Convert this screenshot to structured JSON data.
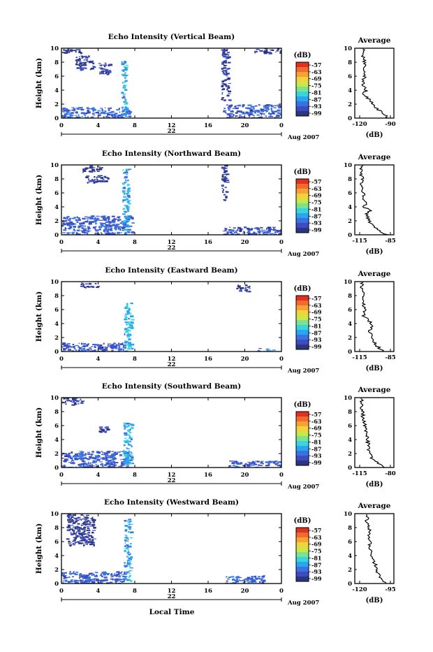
{
  "figure": {
    "bottom_label": "Local Time",
    "x_ticks": [
      "0",
      "4",
      "8",
      "12",
      "16",
      "20",
      "0"
    ],
    "date_day": "22",
    "month_year": "Aug 2007",
    "y_label": "Height (km)",
    "y_ticks": [
      "0",
      "2",
      "4",
      "6",
      "8",
      "10"
    ],
    "colorbar_unit": "(dB)",
    "colorbar_ticks": [
      "-57",
      "-63",
      "-69",
      "-75",
      "-81",
      "-87",
      "-93",
      "-99"
    ],
    "colorbar_colors": [
      "#e0301e",
      "#f26a2e",
      "#f7a234",
      "#f5d23c",
      "#c8e84a",
      "#7fe08e",
      "#38d6dc",
      "#2aa6f0",
      "#3a72e0",
      "#3d4cc0",
      "#2c3680"
    ],
    "average_title": "Average",
    "average_unit": "(dB)"
  },
  "panels": [
    {
      "title": "Echo Intensity (Vertical Beam)",
      "avg_xticks": [
        "-120",
        "-90"
      ]
    },
    {
      "title": "Echo Intensity (Northward Beam)",
      "avg_xticks": [
        "-115",
        "-85"
      ]
    },
    {
      "title": "Echo Intensity (Eastward Beam)",
      "avg_xticks": [
        "-115",
        "-85"
      ]
    },
    {
      "title": "Echo Intensity (Southward Beam)",
      "avg_xticks": [
        "-115",
        "-80"
      ]
    },
    {
      "title": "Echo Intensity (Westward Beam)",
      "avg_xticks": [
        "-120",
        "-95"
      ]
    }
  ],
  "chart_data": {
    "type": "heatmap",
    "x_unit": "local time (hours), 22 Aug 2007",
    "y_unit": "height (km)",
    "xlim": [
      0,
      24
    ],
    "ylim": [
      0,
      10
    ],
    "colorbar_range_db": [
      -99,
      -57
    ],
    "beams": [
      {
        "name": "Vertical Beam",
        "echo_regions": [
          {
            "t": [
              0.0,
              2.3
            ],
            "h": [
              9.4,
              10.0
            ],
            "db": -98
          },
          {
            "t": [
              1.5,
              3.5
            ],
            "h": [
              7.0,
              9.0
            ],
            "db": -97
          },
          {
            "t": [
              4.0,
              5.2
            ],
            "h": [
              6.2,
              8.0
            ],
            "db": -97
          },
          {
            "t": [
              0.0,
              7.5
            ],
            "h": [
              0.0,
              1.6
            ],
            "db": -92
          },
          {
            "t": [
              6.5,
              7.0
            ],
            "h": [
              0.3,
              8.2
            ],
            "db": -86
          },
          {
            "t": [
              17.6,
              24.0
            ],
            "h": [
              0.0,
              2.0
            ],
            "db": -93
          },
          {
            "t": [
              17.4,
              18.2
            ],
            "h": [
              2.5,
              10.0
            ],
            "db": -97
          },
          {
            "t": [
              21.0,
              24.0
            ],
            "h": [
              9.4,
              10.0
            ],
            "db": -98
          }
        ],
        "average_profile": {
          "height": [
            0,
            0.5,
            1,
            1.5,
            2,
            2.5,
            3,
            3.5,
            4,
            5,
            6,
            7,
            8,
            9,
            10
          ],
          "db": [
            -92,
            -96,
            -100,
            -104,
            -107,
            -110,
            -113,
            -116,
            -114,
            -117,
            -115,
            -116,
            -115,
            -117,
            -116
          ]
        }
      },
      {
        "name": "Northward Beam",
        "echo_regions": [
          {
            "t": [
              2.2,
              4.5
            ],
            "h": [
              9.0,
              10.0
            ],
            "db": -97
          },
          {
            "t": [
              2.5,
              5.0
            ],
            "h": [
              7.5,
              8.6
            ],
            "db": -97
          },
          {
            "t": [
              0.0,
              7.8
            ],
            "h": [
              0.0,
              2.8
            ],
            "db": -93
          },
          {
            "t": [
              6.6,
              7.3
            ],
            "h": [
              0.5,
              9.5
            ],
            "db": -86
          },
          {
            "t": [
              17.6,
              24.0
            ],
            "h": [
              0.0,
              1.2
            ],
            "db": -94
          },
          {
            "t": [
              17.4,
              18.0
            ],
            "h": [
              5.0,
              10.0
            ],
            "db": -97
          }
        ],
        "average_profile": {
          "height": [
            0,
            0.5,
            1,
            1.5,
            2,
            3,
            3.5,
            4,
            4.5,
            5,
            6,
            7,
            8,
            9,
            10
          ],
          "db": [
            -88,
            -95,
            -99,
            -103,
            -106,
            -108,
            -104,
            -111,
            -107,
            -112,
            -111,
            -113,
            -112,
            -114,
            -113
          ]
        }
      },
      {
        "name": "Eastward Beam",
        "echo_regions": [
          {
            "t": [
              2.0,
              4.0
            ],
            "h": [
              9.2,
              10.0
            ],
            "db": -98
          },
          {
            "t": [
              0.0,
              7.0
            ],
            "h": [
              0.0,
              1.3
            ],
            "db": -93
          },
          {
            "t": [
              6.8,
              7.6
            ],
            "h": [
              0.4,
              7.0
            ],
            "db": -85
          },
          {
            "t": [
              21.0,
              23.0
            ],
            "h": [
              0.0,
              0.5
            ],
            "db": -90
          },
          {
            "t": [
              19.0,
              20.5
            ],
            "h": [
              8.6,
              9.6
            ],
            "db": -98
          }
        ],
        "average_profile": {
          "height": [
            0,
            0.5,
            1,
            2,
            3,
            3.8,
            4.5,
            5,
            6,
            7,
            8,
            9,
            10
          ],
          "db": [
            -92,
            -96,
            -100,
            -103,
            -106,
            -102,
            -107,
            -111,
            -110,
            -112,
            -111,
            -113,
            -112
          ]
        }
      },
      {
        "name": "Southward Beam",
        "echo_regions": [
          {
            "t": [
              0.0,
              2.3
            ],
            "h": [
              9.0,
              10.0
            ],
            "db": -98
          },
          {
            "t": [
              0.0,
              7.6
            ],
            "h": [
              0.0,
              2.4
            ],
            "db": -93
          },
          {
            "t": [
              6.7,
              7.6
            ],
            "h": [
              0.5,
              6.5
            ],
            "db": -86
          },
          {
            "t": [
              18.2,
              24.0
            ],
            "h": [
              0.0,
              1.0
            ],
            "db": -93
          },
          {
            "t": [
              4.0,
              5.0
            ],
            "h": [
              5.0,
              6.0
            ],
            "db": -97
          }
        ],
        "average_profile": {
          "height": [
            0,
            0.5,
            1,
            1.5,
            2,
            3,
            4,
            5,
            6,
            7,
            8,
            9,
            10
          ],
          "db": [
            -88,
            -93,
            -98,
            -102,
            -104,
            -105,
            -106,
            -107,
            -109,
            -111,
            -112,
            -113,
            -113
          ]
        }
      },
      {
        "name": "Westward Beam",
        "echo_regions": [
          {
            "t": [
              0.5,
              3.5
            ],
            "h": [
              5.5,
              10.0
            ],
            "db": -98
          },
          {
            "t": [
              0.0,
              7.0
            ],
            "h": [
              0.0,
              1.8
            ],
            "db": -93
          },
          {
            "t": [
              6.8,
              7.5
            ],
            "h": [
              0.5,
              9.3
            ],
            "db": -87
          },
          {
            "t": [
              17.8,
              22.0
            ],
            "h": [
              0.0,
              1.2
            ],
            "db": -92
          }
        ],
        "average_profile": {
          "height": [
            0,
            0.5,
            1,
            2,
            3,
            4,
            5,
            6,
            7,
            8,
            9,
            10
          ],
          "db": [
            -98,
            -102,
            -104,
            -106,
            -108,
            -110,
            -112,
            -111,
            -113,
            -112,
            -114,
            -113
          ]
        }
      }
    ]
  }
}
